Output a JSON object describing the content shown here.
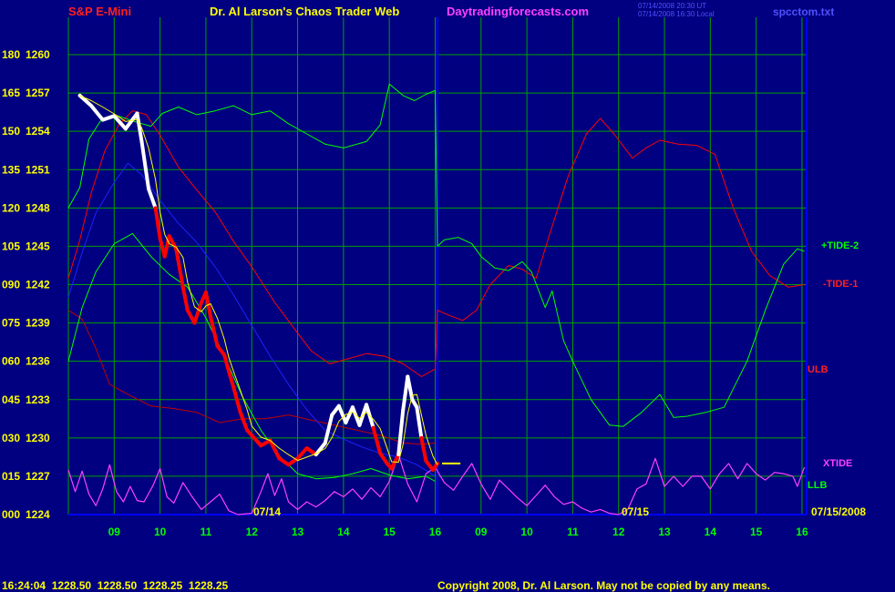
{
  "header": {
    "symbol": "S&P E-Mini",
    "title": "Dr. Al Larson's Chaos Trader Web",
    "site": "Daytradingforecasts.com",
    "stamp_line1": "07/14/2008 20:30 UT",
    "stamp_line2": "07/14/2008 16:30 Local",
    "filename": "spcctom.txt"
  },
  "footer": {
    "quote": "16:24:04  1228.50  1228.50  1228.25  1228.25",
    "copyright": "Copyright 2008, Dr. Al Larson. May not be copied by any means."
  },
  "colors": {
    "background": "#000080",
    "grid": "#00a000",
    "price_bar": "#ffffff",
    "red": "#ff0000",
    "yellow": "#ffff00",
    "green": "#00ff00",
    "magenta": "#ff40ff",
    "blue": "#0000ff",
    "dark_red": "#c00000"
  },
  "chart_data": {
    "type": "line",
    "title": "S&P E-Mini",
    "xlabel": "",
    "ylabel": "",
    "ylim": [
      1224,
      1260
    ],
    "y_ticks_price": [
      "1260",
      "1257",
      "1254",
      "1251",
      "1248",
      "1245",
      "1242",
      "1239",
      "1236",
      "1233",
      "1230",
      "1227",
      "1224"
    ],
    "y_ticks_osc": [
      "180",
      "165",
      "150",
      "135",
      "120",
      "105",
      "090",
      "075",
      "060",
      "045",
      "030",
      "015",
      "000"
    ],
    "x_ticks": [
      "09",
      "10",
      "11",
      "12",
      "13",
      "14",
      "15",
      "16",
      "09",
      "10",
      "11",
      "12",
      "13",
      "14",
      "15",
      "16"
    ],
    "date_labels": [
      "07/14",
      "07/15",
      "07/15/2008"
    ],
    "grid": true,
    "series_labels": [
      "+TIDE-2",
      "-TIDE-1",
      "ULB",
      "XTIDE",
      "LLB"
    ],
    "price_series": [
      {
        "h": 8.25,
        "p": 1256.8
      },
      {
        "h": 8.5,
        "p": 1256.0
      },
      {
        "h": 8.75,
        "p": 1254.9
      },
      {
        "h": 9.0,
        "p": 1255.2
      },
      {
        "h": 9.25,
        "p": 1254.2
      },
      {
        "h": 9.5,
        "p": 1255.4
      },
      {
        "h": 9.6,
        "p": 1253.2
      },
      {
        "h": 9.75,
        "p": 1249.5
      },
      {
        "h": 9.9,
        "p": 1248.0
      },
      {
        "h": 10.0,
        "p": 1245.6
      },
      {
        "h": 10.1,
        "p": 1244.2
      },
      {
        "h": 10.2,
        "p": 1245.8
      },
      {
        "h": 10.35,
        "p": 1244.8
      },
      {
        "h": 10.5,
        "p": 1241.8
      },
      {
        "h": 10.6,
        "p": 1240.0
      },
      {
        "h": 10.75,
        "p": 1239.0
      },
      {
        "h": 10.9,
        "p": 1240.6
      },
      {
        "h": 11.0,
        "p": 1241.4
      },
      {
        "h": 11.1,
        "p": 1239.5
      },
      {
        "h": 11.25,
        "p": 1237.2
      },
      {
        "h": 11.4,
        "p": 1236.5
      },
      {
        "h": 11.5,
        "p": 1235.2
      },
      {
        "h": 11.6,
        "p": 1234.0
      },
      {
        "h": 11.75,
        "p": 1232.0
      },
      {
        "h": 11.9,
        "p": 1230.6
      },
      {
        "h": 12.0,
        "p": 1230.2
      },
      {
        "h": 12.2,
        "p": 1229.4
      },
      {
        "h": 12.4,
        "p": 1229.8
      },
      {
        "h": 12.6,
        "p": 1228.4
      },
      {
        "h": 12.8,
        "p": 1227.9
      },
      {
        "h": 13.0,
        "p": 1228.4
      },
      {
        "h": 13.2,
        "p": 1229.2
      },
      {
        "h": 13.4,
        "p": 1228.7
      },
      {
        "h": 13.6,
        "p": 1229.6
      },
      {
        "h": 13.75,
        "p": 1231.8
      },
      {
        "h": 13.9,
        "p": 1232.5
      },
      {
        "h": 14.05,
        "p": 1231.2
      },
      {
        "h": 14.2,
        "p": 1232.4
      },
      {
        "h": 14.35,
        "p": 1231.0
      },
      {
        "h": 14.5,
        "p": 1232.6
      },
      {
        "h": 14.65,
        "p": 1230.8
      },
      {
        "h": 14.8,
        "p": 1228.8
      },
      {
        "h": 14.95,
        "p": 1228.0
      },
      {
        "h": 15.05,
        "p": 1227.6
      },
      {
        "h": 15.2,
        "p": 1228.7
      },
      {
        "h": 15.3,
        "p": 1232.2
      },
      {
        "h": 15.4,
        "p": 1234.8
      },
      {
        "h": 15.5,
        "p": 1233.0
      },
      {
        "h": 15.6,
        "p": 1232.4
      },
      {
        "h": 15.7,
        "p": 1230.0
      },
      {
        "h": 15.8,
        "p": 1228.2
      },
      {
        "h": 15.95,
        "p": 1227.5
      },
      {
        "h": 16.05,
        "p": 1228.0
      }
    ],
    "tide2_green": [
      {
        "h": 8.0,
        "p": 1248.0
      },
      {
        "h": 8.25,
        "p": 1249.6
      },
      {
        "h": 8.45,
        "p": 1253.4
      },
      {
        "h": 8.7,
        "p": 1254.8
      },
      {
        "h": 9.0,
        "p": 1255.3
      },
      {
        "h": 9.5,
        "p": 1254.7
      },
      {
        "h": 9.8,
        "p": 1254.4
      },
      {
        "h": 10.05,
        "p": 1255.4
      },
      {
        "h": 10.4,
        "p": 1255.9
      },
      {
        "h": 10.8,
        "p": 1255.3
      },
      {
        "h": 11.2,
        "p": 1255.6
      },
      {
        "h": 11.6,
        "p": 1256.0
      },
      {
        "h": 12.0,
        "p": 1255.3
      },
      {
        "h": 12.4,
        "p": 1255.6
      },
      {
        "h": 12.8,
        "p": 1254.6
      },
      {
        "h": 13.2,
        "p": 1253.8
      },
      {
        "h": 13.6,
        "p": 1253.0
      },
      {
        "h": 14.0,
        "p": 1252.7
      },
      {
        "h": 14.5,
        "p": 1253.2
      },
      {
        "h": 14.8,
        "p": 1254.5
      },
      {
        "h": 15.0,
        "p": 1257.7
      },
      {
        "h": 15.3,
        "p": 1256.8
      },
      {
        "h": 15.55,
        "p": 1256.4
      },
      {
        "h": 15.8,
        "p": 1256.9
      },
      {
        "h": 16.0,
        "p": 1257.2
      },
      {
        "h": 16.05,
        "p": 1245.0
      },
      {
        "h": 16.2,
        "p": 1245.5
      },
      {
        "h": 16.5,
        "p": 1245.7
      },
      {
        "h": 16.8,
        "p": 1245.2
      },
      {
        "h": 17.0,
        "p": 1244.2
      },
      {
        "h": 17.3,
        "p": 1243.3
      },
      {
        "h": 17.6,
        "p": 1243.1
      },
      {
        "h": 17.9,
        "p": 1243.8
      },
      {
        "h": 18.1,
        "p": 1243.0
      },
      {
        "h": 18.4,
        "p": 1240.2
      },
      {
        "h": 18.55,
        "p": 1241.5
      },
      {
        "h": 18.8,
        "p": 1237.6
      },
      {
        "h": 19.0,
        "p": 1236.0
      },
      {
        "h": 19.4,
        "p": 1233.0
      },
      {
        "h": 19.8,
        "p": 1231.0
      },
      {
        "h": 20.1,
        "p": 1230.9
      },
      {
        "h": 20.5,
        "p": 1232.0
      },
      {
        "h": 20.9,
        "p": 1233.4
      },
      {
        "h": 21.2,
        "p": 1231.6
      },
      {
        "h": 21.5,
        "p": 1231.7
      },
      {
        "h": 21.9,
        "p": 1232.0
      },
      {
        "h": 22.3,
        "p": 1232.4
      },
      {
        "h": 22.8,
        "p": 1236.0
      },
      {
        "h": 23.2,
        "p": 1240.0
      },
      {
        "h": 23.6,
        "p": 1243.6
      },
      {
        "h": 23.9,
        "p": 1244.8
      },
      {
        "h": 24.05,
        "p": 1244.6
      }
    ],
    "tide1_red": [
      {
        "h": 8.0,
        "p": 1242.5
      },
      {
        "h": 8.25,
        "p": 1245.5
      },
      {
        "h": 8.5,
        "p": 1249.2
      },
      {
        "h": 8.8,
        "p": 1252.5
      },
      {
        "h": 9.1,
        "p": 1254.5
      },
      {
        "h": 9.4,
        "p": 1255.6
      },
      {
        "h": 9.7,
        "p": 1255.3
      },
      {
        "h": 10.0,
        "p": 1253.7
      },
      {
        "h": 10.4,
        "p": 1251.2
      },
      {
        "h": 10.8,
        "p": 1249.4
      },
      {
        "h": 11.2,
        "p": 1247.7
      },
      {
        "h": 11.6,
        "p": 1245.4
      },
      {
        "h": 12.0,
        "p": 1243.4
      },
      {
        "h": 12.5,
        "p": 1240.6
      },
      {
        "h": 13.0,
        "p": 1238.2
      },
      {
        "h": 13.3,
        "p": 1236.8
      },
      {
        "h": 13.7,
        "p": 1235.8
      },
      {
        "h": 14.1,
        "p": 1236.2
      },
      {
        "h": 14.5,
        "p": 1236.6
      },
      {
        "h": 14.9,
        "p": 1236.4
      },
      {
        "h": 15.3,
        "p": 1235.8
      },
      {
        "h": 15.7,
        "p": 1234.8
      },
      {
        "h": 16.0,
        "p": 1235.4
      },
      {
        "h": 16.05,
        "p": 1240.0
      },
      {
        "h": 16.3,
        "p": 1239.6
      },
      {
        "h": 16.6,
        "p": 1239.2
      },
      {
        "h": 16.9,
        "p": 1240.0
      },
      {
        "h": 17.2,
        "p": 1242.0
      },
      {
        "h": 17.6,
        "p": 1243.5
      },
      {
        "h": 17.9,
        "p": 1243.2
      },
      {
        "h": 18.2,
        "p": 1242.5
      },
      {
        "h": 18.5,
        "p": 1246.0
      },
      {
        "h": 18.9,
        "p": 1250.5
      },
      {
        "h": 19.3,
        "p": 1253.8
      },
      {
        "h": 19.6,
        "p": 1255.0
      },
      {
        "h": 19.9,
        "p": 1253.8
      },
      {
        "h": 20.3,
        "p": 1251.9
      },
      {
        "h": 20.6,
        "p": 1252.7
      },
      {
        "h": 20.9,
        "p": 1253.3
      },
      {
        "h": 21.3,
        "p": 1253.0
      },
      {
        "h": 21.7,
        "p": 1252.9
      },
      {
        "h": 22.1,
        "p": 1252.2
      },
      {
        "h": 22.5,
        "p": 1248.0
      },
      {
        "h": 22.9,
        "p": 1244.6
      },
      {
        "h": 23.3,
        "p": 1242.7
      },
      {
        "h": 23.7,
        "p": 1241.8
      },
      {
        "h": 24.05,
        "p": 1242.0
      }
    ],
    "ulb_dark_red": [
      {
        "h": 8.0,
        "p": 1240.0
      },
      {
        "h": 8.3,
        "p": 1239.3
      },
      {
        "h": 8.6,
        "p": 1237.0
      },
      {
        "h": 8.9,
        "p": 1234.2
      },
      {
        "h": 9.3,
        "p": 1233.4
      },
      {
        "h": 9.8,
        "p": 1232.5
      },
      {
        "h": 10.3,
        "p": 1232.3
      },
      {
        "h": 10.8,
        "p": 1232.0
      },
      {
        "h": 11.3,
        "p": 1231.2
      },
      {
        "h": 11.8,
        "p": 1231.5
      },
      {
        "h": 12.3,
        "p": 1231.5
      },
      {
        "h": 12.8,
        "p": 1231.8
      },
      {
        "h": 13.3,
        "p": 1231.4
      },
      {
        "h": 13.8,
        "p": 1231.0
      },
      {
        "h": 14.3,
        "p": 1230.6
      },
      {
        "h": 14.8,
        "p": 1230.2
      },
      {
        "h": 15.3,
        "p": 1229.6
      },
      {
        "h": 15.7,
        "p": 1229.5
      },
      {
        "h": 16.0,
        "p": 1229.6
      }
    ],
    "blue_average": [
      {
        "h": 8.0,
        "p": 1241.0
      },
      {
        "h": 8.3,
        "p": 1244.5
      },
      {
        "h": 8.6,
        "p": 1247.6
      },
      {
        "h": 9.0,
        "p": 1250.0
      },
      {
        "h": 9.3,
        "p": 1251.5
      },
      {
        "h": 9.6,
        "p": 1250.6
      },
      {
        "h": 10.0,
        "p": 1248.6
      },
      {
        "h": 10.4,
        "p": 1246.8
      },
      {
        "h": 10.8,
        "p": 1245.3
      },
      {
        "h": 11.2,
        "p": 1243.4
      },
      {
        "h": 11.6,
        "p": 1241.2
      },
      {
        "h": 12.0,
        "p": 1238.8
      },
      {
        "h": 12.4,
        "p": 1236.4
      },
      {
        "h": 12.8,
        "p": 1234.2
      },
      {
        "h": 13.2,
        "p": 1232.2
      },
      {
        "h": 13.6,
        "p": 1230.6
      },
      {
        "h": 14.0,
        "p": 1229.9
      },
      {
        "h": 14.4,
        "p": 1229.3
      },
      {
        "h": 14.8,
        "p": 1228.8
      },
      {
        "h": 15.2,
        "p": 1228.5
      },
      {
        "h": 15.6,
        "p": 1227.9
      },
      {
        "h": 16.0,
        "p": 1227.0
      }
    ],
    "llb_green": [
      {
        "h": 8.0,
        "p": 1236.0
      },
      {
        "h": 8.3,
        "p": 1240.2
      },
      {
        "h": 8.6,
        "p": 1243.0
      },
      {
        "h": 9.0,
        "p": 1245.2
      },
      {
        "h": 9.4,
        "p": 1246.0
      },
      {
        "h": 9.8,
        "p": 1244.2
      },
      {
        "h": 10.2,
        "p": 1242.8
      },
      {
        "h": 10.6,
        "p": 1241.8
      },
      {
        "h": 11.0,
        "p": 1239.4
      },
      {
        "h": 11.4,
        "p": 1236.4
      },
      {
        "h": 11.8,
        "p": 1233.2
      },
      {
        "h": 12.2,
        "p": 1230.6
      },
      {
        "h": 12.6,
        "p": 1228.6
      },
      {
        "h": 13.0,
        "p": 1227.2
      },
      {
        "h": 13.4,
        "p": 1226.8
      },
      {
        "h": 13.8,
        "p": 1226.9
      },
      {
        "h": 14.2,
        "p": 1227.2
      },
      {
        "h": 14.6,
        "p": 1227.6
      },
      {
        "h": 15.0,
        "p": 1227.1
      },
      {
        "h": 15.4,
        "p": 1226.8
      },
      {
        "h": 15.8,
        "p": 1227.0
      },
      {
        "h": 16.0,
        "p": 1226.6
      }
    ],
    "xtide_magenta": [
      {
        "h": 8.0,
        "p": 1227.5
      },
      {
        "h": 8.15,
        "p": 1225.8
      },
      {
        "h": 8.3,
        "p": 1227.4
      },
      {
        "h": 8.45,
        "p": 1225.6
      },
      {
        "h": 8.6,
        "p": 1224.7
      },
      {
        "h": 8.75,
        "p": 1226.0
      },
      {
        "h": 8.9,
        "p": 1227.9
      },
      {
        "h": 9.05,
        "p": 1225.8
      },
      {
        "h": 9.2,
        "p": 1225.0
      },
      {
        "h": 9.35,
        "p": 1226.2
      },
      {
        "h": 9.5,
        "p": 1225.1
      },
      {
        "h": 9.65,
        "p": 1225.0
      },
      {
        "h": 9.85,
        "p": 1226.3
      },
      {
        "h": 10.0,
        "p": 1227.6
      },
      {
        "h": 10.15,
        "p": 1225.4
      },
      {
        "h": 10.3,
        "p": 1224.9
      },
      {
        "h": 10.5,
        "p": 1226.5
      },
      {
        "h": 10.7,
        "p": 1225.4
      },
      {
        "h": 10.9,
        "p": 1224.4
      },
      {
        "h": 11.1,
        "p": 1225.0
      },
      {
        "h": 11.3,
        "p": 1225.6
      },
      {
        "h": 11.5,
        "p": 1224.3
      },
      {
        "h": 11.7,
        "p": 1224.0
      },
      {
        "h": 12.0,
        "p": 1224.1
      },
      {
        "h": 12.2,
        "p": 1225.8
      },
      {
        "h": 12.35,
        "p": 1227.2
      },
      {
        "h": 12.5,
        "p": 1225.5
      },
      {
        "h": 12.65,
        "p": 1226.8
      },
      {
        "h": 12.8,
        "p": 1225.0
      },
      {
        "h": 13.0,
        "p": 1224.4
      },
      {
        "h": 13.2,
        "p": 1225.0
      },
      {
        "h": 13.4,
        "p": 1224.6
      },
      {
        "h": 13.6,
        "p": 1225.1
      },
      {
        "h": 13.8,
        "p": 1225.8
      },
      {
        "h": 14.0,
        "p": 1225.4
      },
      {
        "h": 14.2,
        "p": 1226.0
      },
      {
        "h": 14.4,
        "p": 1225.2
      },
      {
        "h": 14.6,
        "p": 1226.1
      },
      {
        "h": 14.8,
        "p": 1225.4
      },
      {
        "h": 15.0,
        "p": 1226.6
      },
      {
        "h": 15.2,
        "p": 1228.7
      },
      {
        "h": 15.4,
        "p": 1226.4
      },
      {
        "h": 15.6,
        "p": 1225.0
      },
      {
        "h": 15.8,
        "p": 1227.2
      },
      {
        "h": 16.0,
        "p": 1227.7
      },
      {
        "h": 16.2,
        "p": 1226.5
      },
      {
        "h": 16.4,
        "p": 1225.9
      },
      {
        "h": 16.6,
        "p": 1227.0
      },
      {
        "h": 16.8,
        "p": 1228.0
      },
      {
        "h": 17.0,
        "p": 1226.4
      },
      {
        "h": 17.2,
        "p": 1225.2
      },
      {
        "h": 17.4,
        "p": 1226.7
      },
      {
        "h": 17.6,
        "p": 1226.0
      },
      {
        "h": 17.8,
        "p": 1225.3
      },
      {
        "h": 18.0,
        "p": 1224.7
      },
      {
        "h": 18.2,
        "p": 1225.5
      },
      {
        "h": 18.4,
        "p": 1226.3
      },
      {
        "h": 18.6,
        "p": 1225.4
      },
      {
        "h": 18.8,
        "p": 1224.8
      },
      {
        "h": 19.0,
        "p": 1225.0
      },
      {
        "h": 19.2,
        "p": 1224.5
      },
      {
        "h": 19.4,
        "p": 1224.2
      },
      {
        "h": 19.6,
        "p": 1224.4
      },
      {
        "h": 19.8,
        "p": 1224.1
      },
      {
        "h": 20.0,
        "p": 1224.0
      },
      {
        "h": 20.2,
        "p": 1224.4
      },
      {
        "h": 20.4,
        "p": 1226.0
      },
      {
        "h": 20.6,
        "p": 1226.4
      },
      {
        "h": 20.8,
        "p": 1228.4
      },
      {
        "h": 21.0,
        "p": 1226.2
      },
      {
        "h": 21.2,
        "p": 1227.0
      },
      {
        "h": 21.4,
        "p": 1226.2
      },
      {
        "h": 21.6,
        "p": 1227.0
      },
      {
        "h": 21.8,
        "p": 1227.0
      },
      {
        "h": 22.0,
        "p": 1226.0
      },
      {
        "h": 22.2,
        "p": 1227.2
      },
      {
        "h": 22.4,
        "p": 1228.0
      },
      {
        "h": 22.6,
        "p": 1226.8
      },
      {
        "h": 22.8,
        "p": 1228.0
      },
      {
        "h": 23.0,
        "p": 1227.2
      },
      {
        "h": 23.2,
        "p": 1226.7
      },
      {
        "h": 23.4,
        "p": 1227.3
      },
      {
        "h": 23.6,
        "p": 1227.2
      },
      {
        "h": 23.8,
        "p": 1227.0
      },
      {
        "h": 23.9,
        "p": 1226.2
      },
      {
        "h": 24.05,
        "p": 1227.7
      }
    ]
  }
}
